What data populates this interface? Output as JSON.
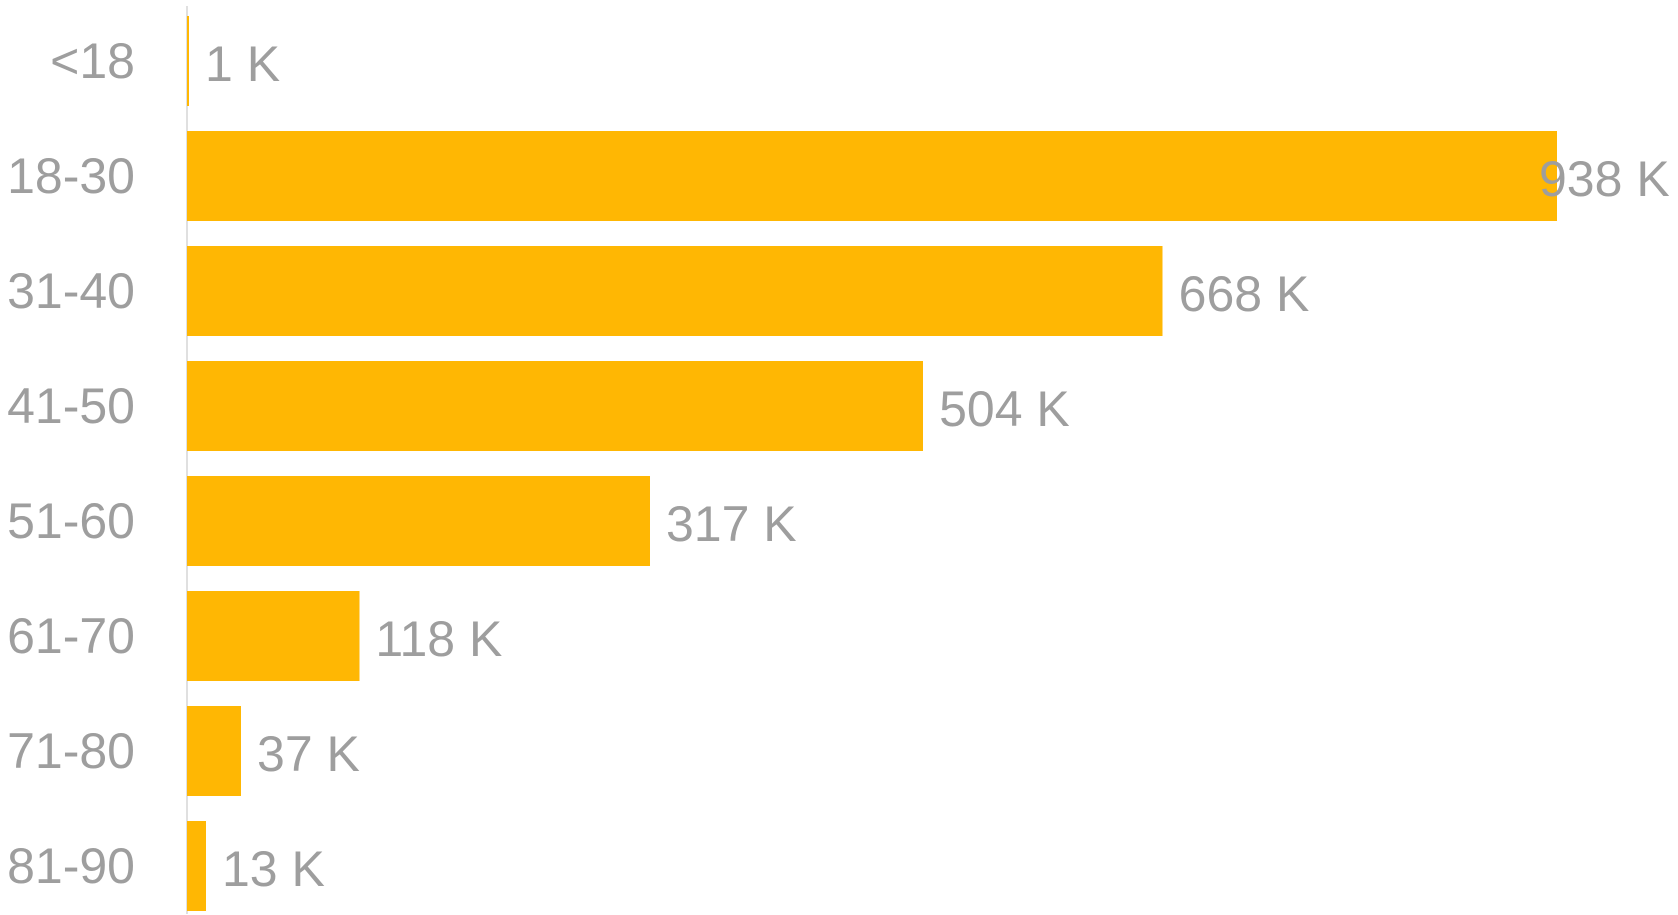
{
  "chart_data": {
    "type": "bar",
    "orientation": "horizontal",
    "categories": [
      "<18",
      "18-30",
      "31-40",
      "41-50",
      "51-60",
      "61-70",
      "71-80",
      "81-90"
    ],
    "values": [
      1,
      938,
      668,
      504,
      317,
      118,
      37,
      13
    ],
    "value_labels": [
      "1 K",
      "938 K",
      "668 K",
      "504 K",
      "317 K",
      "118 K",
      "37 K",
      "13 K"
    ],
    "unit": "K",
    "title": "",
    "xlabel": "",
    "ylabel": "",
    "xlim": [
      0,
      938
    ],
    "grid": false,
    "legend": "none",
    "bar_color": "#FFB703",
    "label_color": "#9E9E9E",
    "axis_color": "#E0E0E0"
  }
}
